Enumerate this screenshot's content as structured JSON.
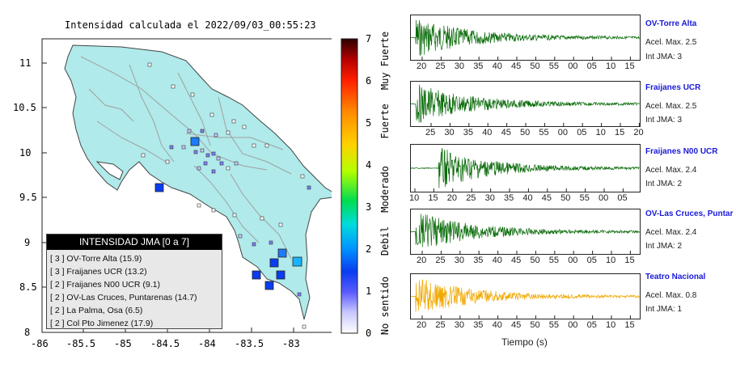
{
  "map": {
    "title": "Intensidad calculada el 2022/09/03_00:55:23",
    "y_ticks": [
      "11",
      "10.5",
      "10",
      "9.5",
      "9",
      "8.5",
      "8"
    ],
    "x_ticks": [
      "-86",
      "-85.5",
      "-85",
      "-84.5",
      "-84",
      "-83.5",
      "-83"
    ],
    "colors": {
      "land": "#b0eaea",
      "outline": "#444444",
      "roads": "#999999"
    }
  },
  "colorbar": {
    "ticks": [
      "7",
      "6",
      "5",
      "4",
      "3",
      "2",
      "1",
      "0"
    ],
    "labels": [
      "Muy Fuerte",
      "Fuerte",
      "Moderado",
      "Debil",
      "No sentido"
    ]
  },
  "legend": {
    "title": "INTENSIDAD JMA [0 a 7]",
    "rows": [
      "[ 3 ]  OV-Torre Alta (15.9)",
      "[ 3 ]  Fraijanes UCR (13.2)",
      "[ 2 ]  Fraijanes N00 UCR (9.1)",
      "[ 2 ]  OV-Las Cruces, Puntarenas (14.7)",
      "[ 2 ]  La Palma, Osa (6.5)",
      "[ 2 ]  Col Pto Jimenez (17.9)"
    ]
  },
  "stations": [
    {
      "name": "OV-Torre Alta",
      "accel": "Acel. Max. 2.5",
      "jma": "Int JMA: 3",
      "color": "#0a6b0a",
      "ticks": [
        "20",
        "25",
        "30",
        "35",
        "40",
        "45",
        "50",
        "55",
        "00",
        "05",
        "10",
        "15"
      ]
    },
    {
      "name": "Fraijanes UCR",
      "accel": "Acel. Max. 2.5",
      "jma": "Int JMA: 3",
      "color": "#0a6b0a",
      "ticks": [
        "25",
        "30",
        "35",
        "40",
        "45",
        "50",
        "55",
        "00",
        "05",
        "10",
        "15",
        "20"
      ]
    },
    {
      "name": "Fraijanes N00 UCR",
      "accel": "Acel. Max. 2.4",
      "jma": "Int JMA: 2",
      "color": "#0a6b0a",
      "ticks": [
        "10",
        "15",
        "20",
        "25",
        "30",
        "35",
        "40",
        "45",
        "50",
        "55",
        "00",
        "05"
      ]
    },
    {
      "name": "OV-Las Cruces, Puntar",
      "accel": "Acel. Max. 2.4",
      "jma": "Int JMA: 2",
      "color": "#0a6b0a",
      "ticks": [
        "20",
        "25",
        "30",
        "35",
        "40",
        "45",
        "50",
        "55",
        "00",
        "05",
        "10",
        "15"
      ]
    },
    {
      "name": "Teatro Nacional",
      "accel": "Acel. Max. 0.8",
      "jma": "Int JMA: 1",
      "color": "#f0a800",
      "ticks": [
        "20",
        "25",
        "30",
        "35",
        "40",
        "45",
        "50",
        "55",
        "00",
        "05",
        "10",
        "15"
      ]
    }
  ],
  "xlabel": "Tiempo (s)"
}
